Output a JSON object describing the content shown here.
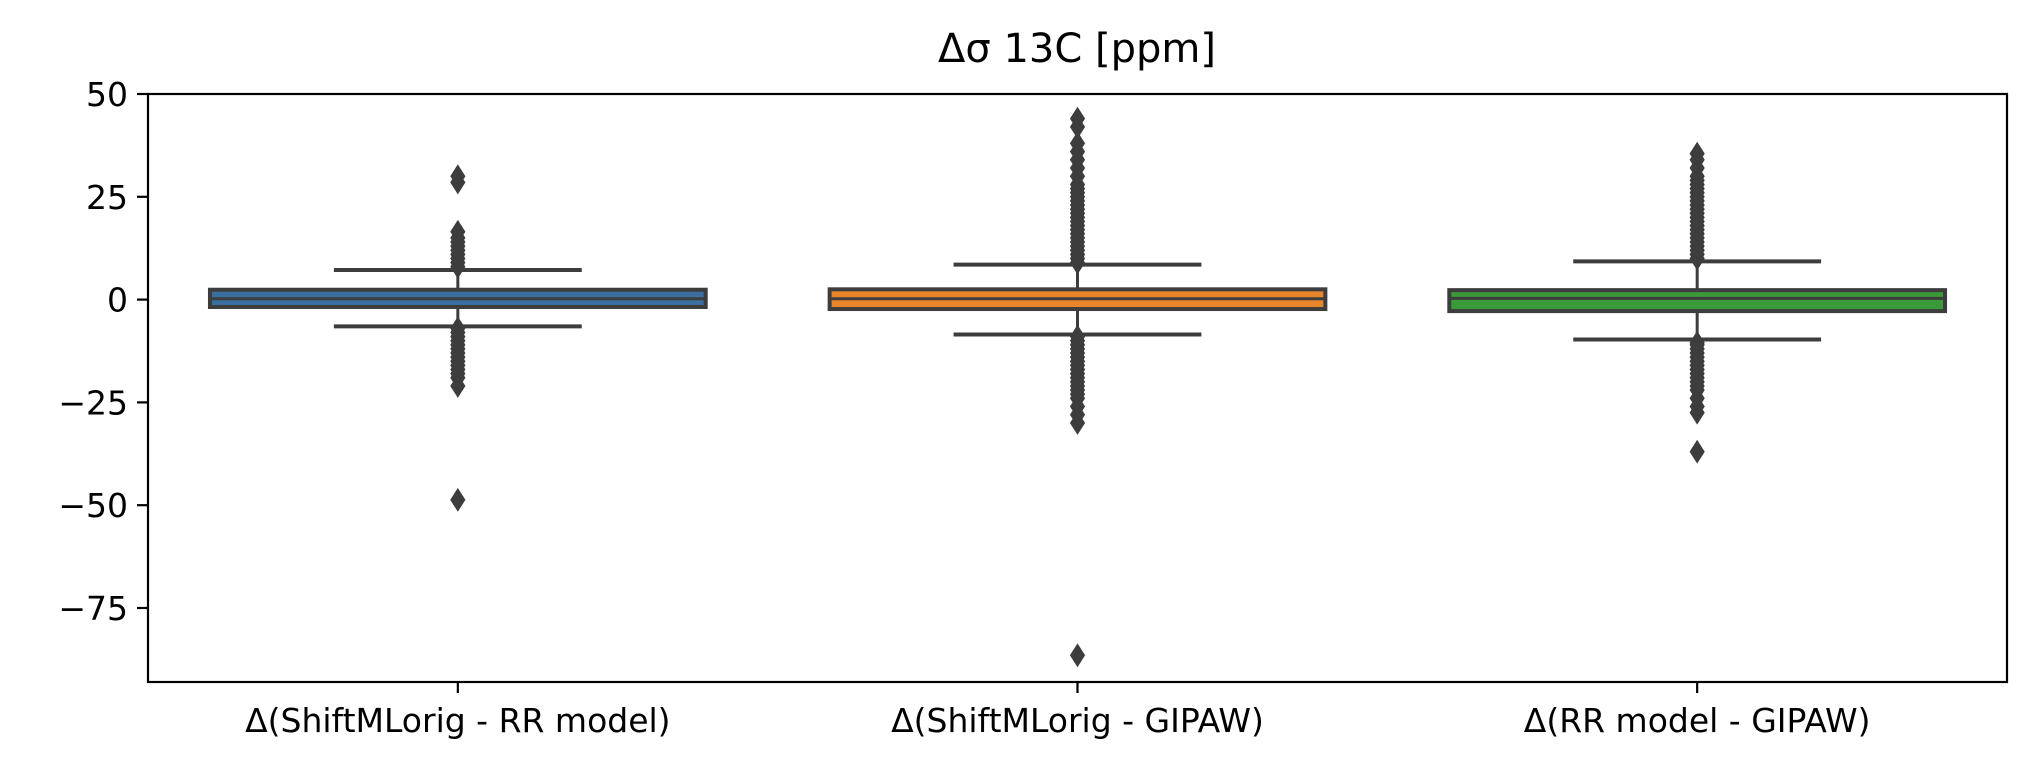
{
  "chart_data": {
    "type": "box",
    "title": "Δσ 13C [ppm]",
    "xlabel": "",
    "ylabel": "",
    "ylim": [
      -93,
      50
    ],
    "yticks": [
      50,
      25,
      0,
      -25,
      -50,
      -75
    ],
    "ytick_labels": [
      "50",
      "25",
      "0",
      "−25",
      "−50",
      "−75"
    ],
    "grid": false,
    "categories": [
      "Δ(ShiftMLorig - RR model)",
      "Δ(ShiftMLorig - GIPAW)",
      "Δ(RR model - GIPAW)"
    ],
    "boxes": [
      {
        "category": "Δ(ShiftMLorig - RR model)",
        "color": "#3b6fa0",
        "q1": -1.8,
        "median": 0.2,
        "q3": 2.4,
        "whisker_low": -6.5,
        "whisker_high": 7.2,
        "outliers_high": [
          8,
          9,
          10,
          11,
          12,
          13,
          14,
          15,
          16.5,
          28.5,
          30
        ],
        "outliers_low": [
          -7,
          -8,
          -9,
          -10,
          -11,
          -12,
          -13,
          -14,
          -15,
          -16,
          -17,
          -18,
          -19,
          -21,
          -48.7
        ]
      },
      {
        "category": "Δ(ShiftMLorig - GIPAW)",
        "color": "#e8852a",
        "q1": -2.3,
        "median": 0.2,
        "q3": 2.5,
        "whisker_low": -8.5,
        "whisker_high": 8.5,
        "outliers_high": [
          9,
          10,
          11,
          12,
          13,
          14,
          15,
          16,
          17,
          18,
          19,
          20,
          21,
          22,
          23,
          24,
          25,
          26,
          27,
          28,
          30,
          32,
          34,
          36,
          38,
          42,
          44
        ],
        "outliers_low": [
          -9,
          -10,
          -11,
          -12,
          -13,
          -14,
          -15,
          -16,
          -17,
          -18,
          -19,
          -20,
          -21,
          -22,
          -23,
          -24,
          -26,
          -28,
          -30,
          -86.5
        ]
      },
      {
        "category": "Δ(RR model - GIPAW)",
        "color": "#3a9a3a",
        "q1": -2.8,
        "median": 0.3,
        "q3": 2.3,
        "whisker_low": -9.7,
        "whisker_high": 9.3,
        "outliers_high": [
          10,
          11,
          12,
          13,
          14,
          15,
          16,
          17,
          18,
          19,
          20,
          21,
          22,
          23,
          24,
          25,
          26,
          27,
          28,
          29,
          30,
          32,
          34,
          35.5
        ],
        "outliers_low": [
          -10.5,
          -11,
          -12,
          -13,
          -14,
          -15,
          -16,
          -17,
          -18,
          -19,
          -20,
          -21,
          -22,
          -24,
          -26,
          -27.5,
          -37
        ]
      }
    ]
  }
}
